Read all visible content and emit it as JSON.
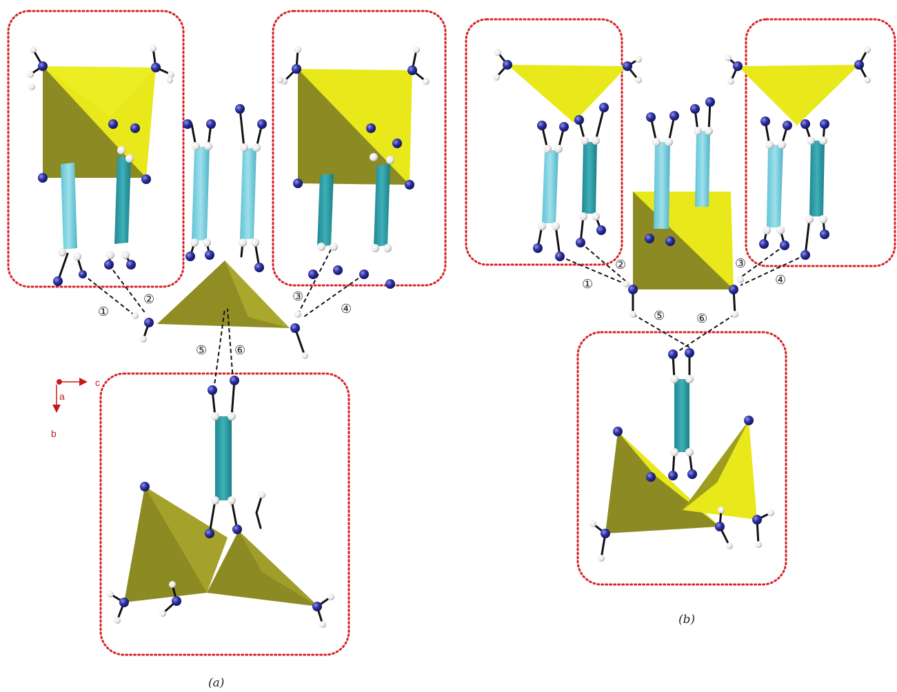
{
  "panels": [
    {
      "id": "a",
      "label": "(a)"
    },
    {
      "id": "b",
      "label": "(b)"
    }
  ],
  "contacts": [
    "①",
    "②",
    "③",
    "④",
    "⑤",
    "⑥"
  ],
  "axes": {
    "x": "c",
    "y": "b",
    "origin": "a"
  },
  "colors": {
    "tetra_light": "#e8e81a",
    "tetra_dark": "#8c8a22",
    "ring_light": "#72cede",
    "ring_dark": "#2a9aa3",
    "nitrogen": "#2b2f9c",
    "hydrogen": "#eeeeee",
    "frame": "#d91f26"
  }
}
